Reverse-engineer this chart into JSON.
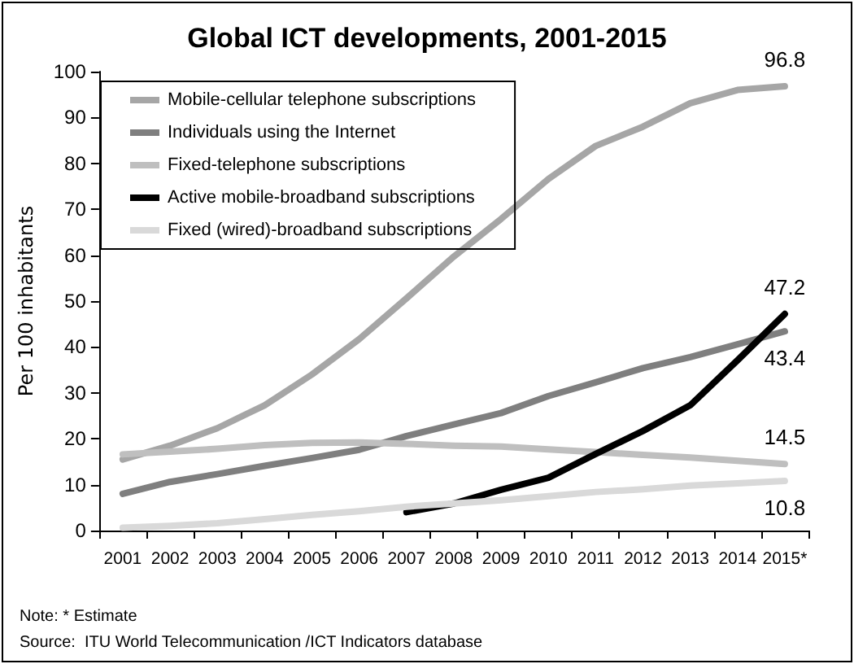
{
  "chart_data": {
    "type": "line",
    "title": "Global ICT developments, 2001-2015",
    "ylabel": "Per 100 inhabitants",
    "categories": [
      "2001",
      "2002",
      "2003",
      "2004",
      "2005",
      "2006",
      "2007",
      "2008",
      "2009",
      "2010",
      "2011",
      "2012",
      "2013",
      "2014",
      "2015*"
    ],
    "series": [
      {
        "name": "Mobile-cellular telephone subscriptions",
        "color": "#a6a6a6",
        "values": [
          15.5,
          18.5,
          22.3,
          27.3,
          34,
          41.7,
          50.6,
          59.7,
          67.9,
          76.6,
          83.8,
          88,
          93.1,
          96,
          96.8
        ],
        "value_labels": [
          null,
          null,
          null,
          null,
          null,
          null,
          null,
          null,
          null,
          null,
          null,
          null,
          null,
          null,
          "96.8"
        ]
      },
      {
        "name": "Individuals using the Internet",
        "color": "#7f7f7f",
        "values": [
          8,
          10.6,
          12.3,
          14.1,
          15.8,
          17.6,
          20.6,
          23.1,
          25.6,
          29.3,
          32.3,
          35.4,
          37.8,
          40.6,
          43.4
        ],
        "value_labels": [
          null,
          null,
          null,
          null,
          null,
          null,
          null,
          null,
          null,
          null,
          null,
          null,
          null,
          null,
          "43.4"
        ]
      },
      {
        "name": "Fixed-telephone subscriptions",
        "color": "#bfbfbf",
        "values": [
          16.6,
          17.2,
          17.8,
          18.6,
          19.1,
          19.2,
          18.9,
          18.5,
          18.3,
          17.7,
          17.1,
          16.5,
          15.9,
          15.2,
          14.5
        ],
        "value_labels": [
          null,
          null,
          null,
          null,
          null,
          null,
          null,
          null,
          null,
          null,
          null,
          null,
          null,
          null,
          "14.5"
        ]
      },
      {
        "name": "Active mobile-broadband subscriptions",
        "color": "#000000",
        "values": [
          null,
          null,
          null,
          null,
          null,
          null,
          4,
          5.9,
          8.9,
          11.5,
          16.7,
          21.7,
          27.3,
          37.1,
          47.2
        ],
        "value_labels": [
          null,
          null,
          null,
          null,
          null,
          null,
          null,
          null,
          null,
          null,
          null,
          null,
          null,
          null,
          "47.2"
        ]
      },
      {
        "name": "Fixed (wired)-broadband subscriptions",
        "color": "#d9d9d9",
        "values": [
          0.6,
          1,
          1.6,
          2.5,
          3.4,
          4.2,
          5.2,
          5.9,
          6.6,
          7.5,
          8.4,
          9,
          9.8,
          10.3,
          10.8
        ],
        "value_labels": [
          null,
          null,
          null,
          null,
          null,
          null,
          null,
          null,
          null,
          null,
          null,
          null,
          null,
          null,
          "10.8"
        ]
      }
    ],
    "ylim": [
      0,
      100
    ],
    "yticks": [
      0,
      10,
      20,
      30,
      40,
      50,
      60,
      70,
      80,
      90,
      100
    ],
    "grid": false,
    "legend": "top left",
    "marker": "none",
    "line_style": "solid",
    "annotations": [
      "Note: * Estimate",
      "Source:  ITU World Telecommunication /ICT Indicators database"
    ]
  }
}
